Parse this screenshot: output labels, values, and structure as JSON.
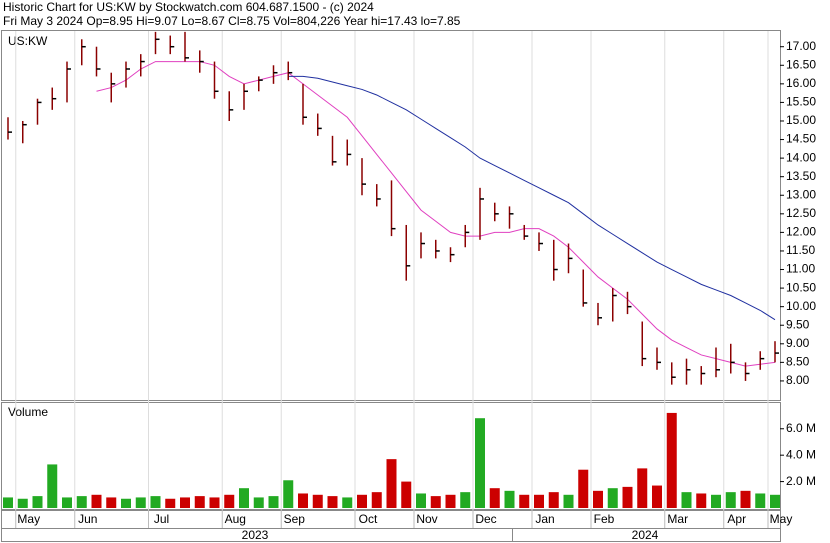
{
  "chart_data": {
    "type": "ohlc",
    "title": "Historic Chart for US:KW by Stockwatch.com 604.687.1500 - (c) 2024",
    "subtitle": "Fri May  3 2024  Op=8.95  Hi=9.07  Lo=8.67  Cl=8.75  Vol=804,226  Year hi=17.43  lo=7.85",
    "symbol_label": "US:KW",
    "volume_label": "Volume",
    "categories": [
      null,
      "May",
      null,
      null,
      null,
      "Jun",
      null,
      null,
      null,
      null,
      "Jul",
      null,
      null,
      null,
      null,
      "Aug",
      null,
      null,
      null,
      "Sep",
      null,
      null,
      null,
      null,
      "Oct",
      null,
      null,
      null,
      "Nov",
      null,
      null,
      null,
      "Dec",
      null,
      null,
      null,
      "Jan",
      null,
      null,
      null,
      "Feb",
      null,
      null,
      null,
      null,
      "Mar",
      null,
      null,
      null,
      "Apr",
      null,
      null,
      "May"
    ],
    "years": [
      "2023",
      "2024"
    ],
    "color": "#8b0000",
    "high": [
      15.1,
      15.0,
      15.6,
      15.9,
      16.6,
      17.2,
      17.0,
      16.3,
      16.6,
      16.8,
      17.4,
      17.3,
      17.4,
      16.9,
      16.6,
      15.8,
      16.0,
      16.2,
      16.5,
      16.6,
      16.0,
      15.2,
      14.6,
      14.5,
      14.0,
      13.3,
      13.4,
      12.2,
      12.0,
      11.8,
      11.6,
      12.2,
      13.2,
      12.8,
      12.7,
      12.2,
      12.0,
      11.8,
      11.7,
      11.0,
      10.1,
      10.5,
      10.4,
      9.6,
      8.9,
      8.5,
      8.6,
      8.4,
      8.9,
      9.0,
      8.5,
      8.8,
      9.07
    ],
    "low": [
      14.5,
      14.4,
      14.9,
      15.3,
      15.5,
      16.5,
      16.2,
      15.5,
      15.9,
      16.2,
      16.8,
      16.8,
      16.6,
      16.3,
      15.6,
      15.0,
      15.3,
      15.8,
      16.0,
      16.1,
      14.9,
      14.6,
      13.8,
      13.8,
      13.0,
      12.7,
      11.9,
      10.7,
      11.3,
      11.3,
      11.2,
      11.6,
      11.8,
      12.3,
      12.1,
      11.8,
      11.5,
      10.7,
      10.9,
      10.0,
      9.5,
      9.6,
      9.8,
      8.4,
      8.3,
      7.9,
      7.9,
      7.9,
      8.1,
      8.2,
      8.0,
      8.3,
      8.5
    ],
    "close": [
      14.7,
      14.9,
      15.5,
      15.6,
      16.4,
      17.0,
      16.4,
      16.0,
      16.4,
      16.6,
      17.2,
      17.0,
      16.7,
      16.6,
      15.8,
      15.3,
      15.8,
      16.1,
      16.3,
      16.3,
      15.1,
      14.8,
      13.9,
      14.1,
      13.3,
      12.9,
      12.1,
      11.1,
      11.7,
      11.5,
      11.4,
      12.0,
      12.9,
      12.5,
      12.5,
      11.9,
      11.7,
      11.0,
      11.3,
      10.1,
      9.7,
      10.3,
      10.0,
      8.6,
      8.5,
      8.1,
      8.3,
      8.2,
      8.3,
      8.5,
      8.2,
      8.6,
      8.75
    ],
    "moving_averages": [
      {
        "color": "#e040c0",
        "values": [
          null,
          null,
          null,
          null,
          null,
          null,
          15.8,
          15.9,
          16.1,
          16.4,
          16.6,
          16.6,
          16.6,
          16.6,
          16.5,
          16.2,
          16.0,
          16.1,
          16.2,
          16.3,
          16.0,
          15.7,
          15.4,
          15.1,
          14.6,
          14.1,
          13.6,
          13.1,
          12.6,
          12.3,
          12.0,
          11.9,
          11.9,
          12.0,
          12.0,
          12.1,
          12.1,
          11.9,
          11.6,
          11.2,
          10.8,
          10.5,
          10.2,
          9.8,
          9.4,
          9.1,
          8.9,
          8.7,
          8.6,
          8.5,
          8.4,
          8.45,
          8.5
        ]
      },
      {
        "color": "#2030a0",
        "values": [
          null,
          null,
          null,
          null,
          null,
          null,
          null,
          null,
          null,
          null,
          null,
          null,
          null,
          null,
          null,
          null,
          null,
          null,
          null,
          16.2,
          16.2,
          16.15,
          16.05,
          15.95,
          15.85,
          15.7,
          15.5,
          15.3,
          15.05,
          14.8,
          14.55,
          14.3,
          14.0,
          13.8,
          13.6,
          13.4,
          13.2,
          13.0,
          12.8,
          12.5,
          12.2,
          11.95,
          11.7,
          11.45,
          11.2,
          11.0,
          10.8,
          10.6,
          10.45,
          10.3,
          10.1,
          9.9,
          9.65
        ]
      }
    ],
    "volume": {
      "axis": "y2",
      "up_color": "#22aa22",
      "down_color": "#cc0000",
      "values": [
        800000,
        700000,
        900000,
        3300000,
        800000,
        900000,
        1000000,
        800000,
        700000,
        800000,
        900000,
        700000,
        800000,
        900000,
        800000,
        1000000,
        1500000,
        800000,
        900000,
        2100000,
        1100000,
        1000000,
        900000,
        800000,
        1000000,
        1200000,
        3700000,
        2000000,
        1100000,
        900000,
        1000000,
        1200000,
        6800000,
        1500000,
        1300000,
        1000000,
        1000000,
        1200000,
        1000000,
        2900000,
        1300000,
        1500000,
        1600000,
        3000000,
        1700000,
        7200000,
        1200000,
        1100000,
        1000000,
        1200000,
        1300000,
        1100000,
        1000000
      ]
    },
    "ylim": [
      7.5,
      17.45
    ],
    "yticks": [
      {
        "value": 8,
        "label": "8.00"
      },
      {
        "value": 8.5,
        "label": "8.50"
      },
      {
        "value": 9,
        "label": "9.00"
      },
      {
        "value": 9.5,
        "label": "9.50"
      },
      {
        "value": 10,
        "label": "10.00"
      },
      {
        "value": 10.5,
        "label": "10.50"
      },
      {
        "value": 11,
        "label": "11.00"
      },
      {
        "value": 11.5,
        "label": "11.50"
      },
      {
        "value": 12,
        "label": "12.00"
      },
      {
        "value": 12.5,
        "label": "12.50"
      },
      {
        "value": 13,
        "label": "13.00"
      },
      {
        "value": 13.5,
        "label": "13.50"
      },
      {
        "value": 14,
        "label": "14.00"
      },
      {
        "value": 14.5,
        "label": "14.50"
      },
      {
        "value": 15,
        "label": "15.00"
      },
      {
        "value": 15.5,
        "label": "15.50"
      },
      {
        "value": 16,
        "label": "16.00"
      },
      {
        "value": 16.5,
        "label": "16.50"
      },
      {
        "value": 17,
        "label": "17.00"
      }
    ],
    "y2lim": [
      0,
      7800000
    ],
    "y2ticks": [
      {
        "value": 2000000,
        "label": "2.0 M"
      },
      {
        "value": 4000000,
        "label": "4.0 M"
      },
      {
        "value": 6000000,
        "label": "6.0 M"
      }
    ]
  }
}
